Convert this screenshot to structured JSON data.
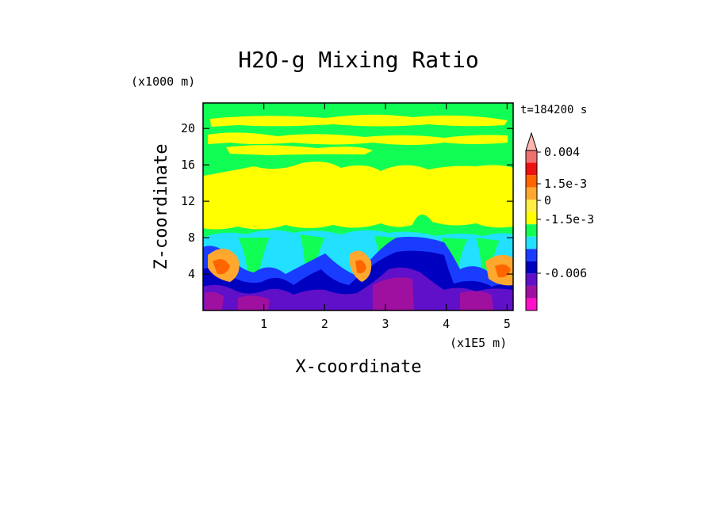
{
  "chart_data": {
    "type": "heatmap",
    "title": "H2O-g Mixing Ratio",
    "xlabel": "X-coordinate",
    "ylabel": "Z-coordinate",
    "x_unit": "(x1E5 m)",
    "y_unit": "(x1000 m)",
    "time_label": "t=184200 s",
    "xlim": [
      0,
      5.1
    ],
    "ylim": [
      0,
      22.8
    ],
    "x_ticks": [
      "1",
      "2",
      "3",
      "4",
      "5"
    ],
    "x_tick_values": [
      1,
      2,
      3,
      4,
      5
    ],
    "y_ticks": [
      "4",
      "8",
      "12",
      "16",
      "20"
    ],
    "y_tick_values": [
      4,
      8,
      12,
      16,
      20
    ],
    "colorbar": {
      "labels": [
        "0.004",
        "1.5e-3",
        "0",
        "-1.5e-3",
        "-0.006"
      ],
      "levels": [
        {
          "color": "#ffb6b0"
        },
        {
          "color": "#f07070"
        },
        {
          "color": "#ee1111"
        },
        {
          "color": "#ff6600"
        },
        {
          "color": "#ffa830"
        },
        {
          "color": "#ffee44"
        },
        {
          "color": "#ffff00"
        },
        {
          "color": "#11ff55"
        },
        {
          "color": "#22e0ff"
        },
        {
          "color": "#1a3cff"
        },
        {
          "color": "#0000c0"
        },
        {
          "color": "#6010c8"
        },
        {
          "color": "#a010a0"
        },
        {
          "color": "#ff10c8"
        }
      ]
    }
  }
}
